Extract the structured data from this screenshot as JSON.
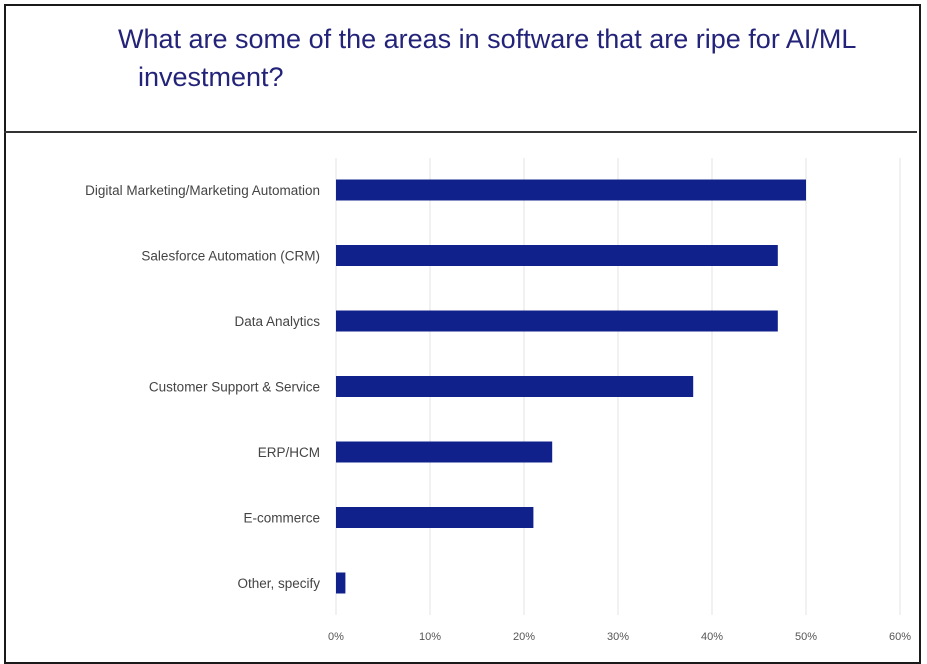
{
  "chart_data": {
    "type": "bar",
    "orientation": "horizontal",
    "title": "What are some of the areas in software that are ripe for AI/ML investment?",
    "title_lines": [
      "What are some of the areas in software that are ripe for AI/ML",
      "investment?"
    ],
    "categories": [
      "Digital Marketing/Marketing Automation",
      "Salesforce Automation (CRM)",
      "Data Analytics",
      "Customer Support & Service",
      "ERP/HCM",
      "E-commerce",
      "Other, specify"
    ],
    "values": [
      50,
      47,
      47,
      38,
      23,
      21,
      1
    ],
    "xlim": [
      0,
      60
    ],
    "xticks": [
      0,
      10,
      20,
      30,
      40,
      50,
      60
    ],
    "xtick_labels": [
      "0%",
      "10%",
      "20%",
      "30%",
      "40%",
      "50%",
      "60%"
    ],
    "grid": true,
    "bar_color": "#10218b",
    "xlabel": "",
    "ylabel": ""
  }
}
